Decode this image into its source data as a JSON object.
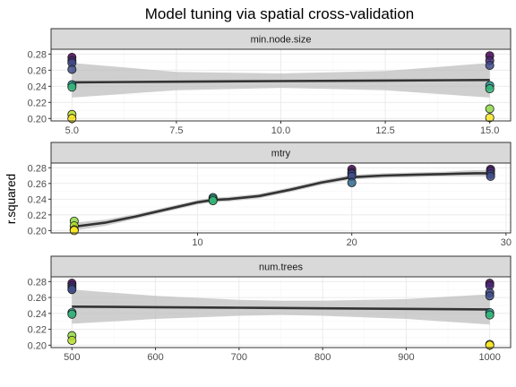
{
  "chart_data": {
    "type": "scatter",
    "title": "Model tuning via spatial cross-validation",
    "ylabel": "r.squared",
    "grid": true,
    "ylim": [
      0.197,
      0.286
    ],
    "y_ticks": [
      0.2,
      0.22,
      0.24,
      0.26,
      0.28
    ],
    "colors": {
      "panel_border": "#333333",
      "strip_fill": "#d9d9d9",
      "grid_major": "#ebebeb",
      "grid_minor": "#f5f5f5",
      "smooth_line": "#333333",
      "band": "#bfbfbf",
      "point_stroke": "#1a1a1a"
    },
    "color_scale": "viridis",
    "facets": [
      {
        "strip_label": "min.node.size",
        "xlim": [
          4.5,
          15.5
        ],
        "x_ticks": [
          5,
          7.5,
          10,
          12.5,
          15
        ],
        "x_tick_labels": [
          "5.0",
          "7.5",
          "10.0",
          "12.5",
          "15.0"
        ],
        "points": [
          {
            "x": 5,
            "y": 0.276,
            "color": "#440154"
          },
          {
            "x": 5,
            "y": 0.272,
            "color": "#482878"
          },
          {
            "x": 5,
            "y": 0.269,
            "color": "#3e4a89"
          },
          {
            "x": 5,
            "y": 0.261,
            "color": "#404d8a"
          },
          {
            "x": 5,
            "y": 0.242,
            "color": "#21908d"
          },
          {
            "x": 5,
            "y": 0.239,
            "color": "#35b779"
          },
          {
            "x": 5,
            "y": 0.205,
            "color": "#b5de2b"
          },
          {
            "x": 5,
            "y": 0.2,
            "color": "#fde725"
          },
          {
            "x": 15,
            "y": 0.278,
            "color": "#440154"
          },
          {
            "x": 15,
            "y": 0.272,
            "color": "#482878"
          },
          {
            "x": 15,
            "y": 0.266,
            "color": "#3e4a89"
          },
          {
            "x": 15,
            "y": 0.241,
            "color": "#21908d"
          },
          {
            "x": 15,
            "y": 0.237,
            "color": "#35b779"
          },
          {
            "x": 15,
            "y": 0.212,
            "color": "#8fd744"
          },
          {
            "x": 15,
            "y": 0.201,
            "color": "#fde725"
          }
        ],
        "smooth": {
          "x": [
            5,
            7.5,
            10,
            12.5,
            15
          ],
          "y": [
            0.245,
            0.2457,
            0.2465,
            0.2472,
            0.2478
          ],
          "lower": [
            0.226,
            0.235,
            0.238,
            0.235,
            0.226
          ],
          "upper": [
            0.269,
            0.258,
            0.256,
            0.259,
            0.269
          ]
        }
      },
      {
        "strip_label": "mtry",
        "xlim": [
          0.5,
          30.3
        ],
        "x_ticks": [
          10,
          20,
          30
        ],
        "x_tick_labels": [
          "10",
          "20",
          "30"
        ],
        "points": [
          {
            "x": 2,
            "y": 0.212,
            "color": "#8fd744"
          },
          {
            "x": 2,
            "y": 0.206,
            "color": "#b5de2b"
          },
          {
            "x": 2,
            "y": 0.201,
            "color": "#dce319"
          },
          {
            "x": 2,
            "y": 0.2,
            "color": "#fde725"
          },
          {
            "x": 11,
            "y": 0.242,
            "color": "#21908d"
          },
          {
            "x": 11,
            "y": 0.24,
            "color": "#29af7f"
          },
          {
            "x": 11,
            "y": 0.238,
            "color": "#35b779"
          },
          {
            "x": 20,
            "y": 0.278,
            "color": "#440154"
          },
          {
            "x": 20,
            "y": 0.274,
            "color": "#482878"
          },
          {
            "x": 20,
            "y": 0.272,
            "color": "#3e4a89"
          },
          {
            "x": 20,
            "y": 0.269,
            "color": "#404d8a"
          },
          {
            "x": 20,
            "y": 0.261,
            "color": "#31688e"
          },
          {
            "x": 29,
            "y": 0.278,
            "color": "#440154"
          },
          {
            "x": 29,
            "y": 0.276,
            "color": "#482878"
          },
          {
            "x": 29,
            "y": 0.272,
            "color": "#3e4a89"
          },
          {
            "x": 29,
            "y": 0.269,
            "color": "#404d8a"
          }
        ],
        "smooth": {
          "x": [
            2,
            4,
            6,
            8,
            10,
            11,
            12,
            14,
            16,
            18,
            20,
            22,
            24,
            26,
            28,
            29
          ],
          "y": [
            0.205,
            0.21,
            0.218,
            0.227,
            0.236,
            0.239,
            0.24,
            0.244,
            0.252,
            0.261,
            0.268,
            0.27,
            0.271,
            0.272,
            0.273,
            0.273
          ],
          "lower": [
            0.2,
            0.206,
            0.215,
            0.224,
            0.233,
            0.236,
            0.237,
            0.241,
            0.249,
            0.258,
            0.265,
            0.267,
            0.268,
            0.269,
            0.269,
            0.269
          ],
          "upper": [
            0.21,
            0.214,
            0.221,
            0.23,
            0.239,
            0.242,
            0.243,
            0.247,
            0.255,
            0.264,
            0.271,
            0.273,
            0.274,
            0.275,
            0.277,
            0.277
          ]
        }
      },
      {
        "strip_label": "num.trees",
        "xlim": [
          475,
          1025
        ],
        "x_ticks": [
          500,
          600,
          700,
          800,
          900,
          1000
        ],
        "x_tick_labels": [
          "500",
          "600",
          "700",
          "800",
          "900",
          "1000"
        ],
        "points": [
          {
            "x": 500,
            "y": 0.278,
            "color": "#440154"
          },
          {
            "x": 500,
            "y": 0.275,
            "color": "#482878"
          },
          {
            "x": 500,
            "y": 0.272,
            "color": "#3e4a89"
          },
          {
            "x": 500,
            "y": 0.27,
            "color": "#404d8a"
          },
          {
            "x": 500,
            "y": 0.241,
            "color": "#21908d"
          },
          {
            "x": 500,
            "y": 0.239,
            "color": "#35b779"
          },
          {
            "x": 500,
            "y": 0.212,
            "color": "#8fd744"
          },
          {
            "x": 500,
            "y": 0.206,
            "color": "#b5de2b"
          },
          {
            "x": 1000,
            "y": 0.278,
            "color": "#440154"
          },
          {
            "x": 1000,
            "y": 0.275,
            "color": "#482878"
          },
          {
            "x": 1000,
            "y": 0.266,
            "color": "#3e4a89"
          },
          {
            "x": 1000,
            "y": 0.262,
            "color": "#404d8a"
          },
          {
            "x": 1000,
            "y": 0.241,
            "color": "#21908d"
          },
          {
            "x": 1000,
            "y": 0.238,
            "color": "#35b779"
          },
          {
            "x": 1000,
            "y": 0.201,
            "color": "#dce319"
          },
          {
            "x": 1000,
            "y": 0.2,
            "color": "#fde725"
          }
        ],
        "smooth": {
          "x": [
            500,
            600,
            700,
            750,
            800,
            900,
            1000
          ],
          "y": [
            0.2485,
            0.2478,
            0.2471,
            0.2468,
            0.2464,
            0.2457,
            0.245
          ],
          "lower": [
            0.227,
            0.233,
            0.237,
            0.238,
            0.237,
            0.233,
            0.226
          ],
          "upper": [
            0.27,
            0.262,
            0.257,
            0.256,
            0.256,
            0.258,
            0.264
          ]
        }
      }
    ]
  }
}
